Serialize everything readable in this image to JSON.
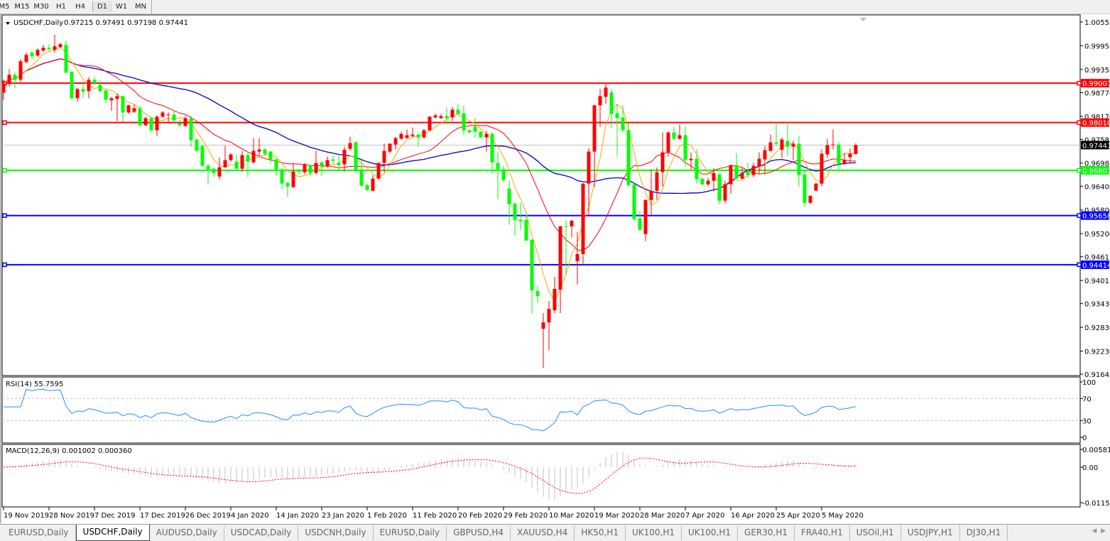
{
  "toolbar": {
    "timeframes": [
      "M5",
      "M15",
      "M30",
      "H1",
      "H4",
      "D1",
      "W1",
      "MN"
    ],
    "active": "D1"
  },
  "header": {
    "symbol": "USDCHF,Daily",
    "ohlc_text": "0.97215 0.97491 0.97198 0.97441"
  },
  "colors": {
    "up_candle": "#ff0000",
    "down_candle": "#00ff00",
    "ma_fast": "#ffa500",
    "ma_mid": "#ff0000",
    "ma_slow": "#0000c8",
    "rsi": "#1e90ff",
    "macd_hist": "#c0c0c0",
    "macd_signal": "#ff0000"
  },
  "price_axis": [
    "1.00555",
    "0.99955",
    "0.99355",
    "0.98770",
    "0.98170",
    "0.97585",
    "0.96985",
    "0.96400",
    "0.95800",
    "0.95200",
    "0.94615",
    "0.94015",
    "0.93430",
    "0.92830",
    "0.92230",
    "0.91645"
  ],
  "levels": [
    {
      "value": "0.99007",
      "color": "#ff0000"
    },
    {
      "value": "0.98010",
      "color": "#ff0000"
    },
    {
      "value": "0.96803",
      "color": "#00ff00"
    },
    {
      "value": "0.95658",
      "color": "#0000ff"
    },
    {
      "value": "0.94414",
      "color": "#0000ff"
    }
  ],
  "current_price": {
    "value": "0.97441",
    "color": "#000000"
  },
  "rsi": {
    "label": "RSI(14) 55.7595",
    "axis": [
      "100",
      "70",
      "30",
      "0"
    ]
  },
  "macd": {
    "label": "MACD(12,26,9) 0.001002 0.000360",
    "axis": [
      "0.005818",
      "0.00",
      "-0.011514"
    ]
  },
  "date_axis": [
    "19 Nov 2019",
    "28 Nov 2019",
    "7 Dec 2019",
    "17 Dec 2019",
    "26 Dec 2019",
    "4 Jan 2020",
    "14 Jan 2020",
    "23 Jan 2020",
    "1 Feb 2020",
    "11 Feb 2020",
    "20 Feb 2020",
    "29 Feb 2020",
    "10 Mar 2020",
    "19 Mar 2020",
    "28 Mar 2020",
    "7 Apr 2020",
    "16 Apr 2020",
    "25 Apr 2020",
    "5 May 2020"
  ],
  "tabs": [
    "EURUSD,Daily",
    "USDCHF,Daily",
    "AUDUSD,Daily",
    "USDCAD,Daily",
    "USDCNH,Daily",
    "EURUSD,Daily",
    "GBPUSD,H4",
    "XAUUSD,H4",
    "HK50,H1",
    "UK100,H1",
    "UK100,H1",
    "GER30,H1",
    "FRA40,H1",
    "USOil,H1",
    "USDJPY,H1",
    "DJ30,H1"
  ],
  "active_tab": "USDCHF,Daily",
  "chart_data": {
    "type": "candlestick",
    "symbol": "USDCHF",
    "timeframe": "Daily",
    "ylim": [
      0.91645,
      1.00555
    ],
    "ohlc_fields": [
      "open",
      "high",
      "low",
      "close"
    ],
    "ohlc": [
      [
        0.9877,
        0.99094,
        0.9859,
        0.99004
      ],
      [
        0.98986,
        0.99364,
        0.98914,
        0.9922
      ],
      [
        0.9922,
        0.99274,
        0.98878,
        0.99094
      ],
      [
        0.99094,
        0.99616,
        0.9904,
        0.99562
      ],
      [
        0.99544,
        0.99778,
        0.99508,
        0.99724
      ],
      [
        0.99778,
        0.99832,
        0.99598,
        0.99688
      ],
      [
        0.99706,
        0.99886,
        0.9967,
        0.9985
      ],
      [
        0.99832,
        0.99976,
        0.99796,
        0.99904
      ],
      [
        0.99904,
        0.99994,
        0.99814,
        0.99868
      ],
      [
        0.9985,
        1.00228,
        0.99778,
        0.9994
      ],
      [
        0.99922,
        1.0003,
        0.99904,
        0.99994
      ],
      [
        0.99976,
        1.00084,
        0.99256,
        0.99274
      ],
      [
        0.99292,
        0.9931,
        0.986,
        0.98626
      ],
      [
        0.98626,
        0.98896,
        0.98536,
        0.9886
      ],
      [
        0.9886,
        0.98986,
        0.98626,
        0.98788
      ],
      [
        0.98806,
        0.99166,
        0.98626,
        0.99094
      ],
      [
        0.99094,
        0.99166,
        0.98968,
        0.99004
      ],
      [
        0.98968,
        0.99094,
        0.9877,
        0.98806
      ],
      [
        0.98824,
        0.98842,
        0.985,
        0.9859
      ],
      [
        0.98572,
        0.98662,
        0.98302,
        0.98626
      ],
      [
        0.98608,
        0.98752,
        0.9805,
        0.9868
      ],
      [
        0.9868,
        0.98698,
        0.98032,
        0.98266
      ],
      [
        0.98266,
        0.98464,
        0.9823,
        0.98446
      ],
      [
        0.98284,
        0.98464,
        0.98248,
        0.98374
      ],
      [
        0.98374,
        0.98428,
        0.97924,
        0.97942
      ],
      [
        0.97942,
        0.98158,
        0.97924,
        0.98122
      ],
      [
        0.98122,
        0.98158,
        0.97762,
        0.97816
      ],
      [
        0.97816,
        0.98194,
        0.97672,
        0.98158
      ],
      [
        0.98158,
        0.98302,
        0.9814,
        0.98266
      ],
      [
        0.98194,
        0.98266,
        0.97996,
        0.98212
      ],
      [
        0.98212,
        0.9832,
        0.98032,
        0.98068
      ],
      [
        0.97996,
        0.98086,
        0.97906,
        0.97942
      ],
      [
        0.97924,
        0.98176,
        0.97906,
        0.98122
      ],
      [
        0.98122,
        0.98176,
        0.97402,
        0.97564
      ],
      [
        0.97582,
        0.976,
        0.97276,
        0.97294
      ],
      [
        0.9742,
        0.97438,
        0.96898,
        0.96916
      ],
      [
        0.96916,
        0.9697,
        0.96448,
        0.96826
      ],
      [
        0.96844,
        0.96862,
        0.96628,
        0.96736
      ],
      [
        0.96646,
        0.97132,
        0.96574,
        0.9688
      ],
      [
        0.9688,
        0.9742,
        0.96862,
        0.9706
      ],
      [
        0.9706,
        0.9724,
        0.97024,
        0.97204
      ],
      [
        0.97024,
        0.97186,
        0.96808,
        0.96844
      ],
      [
        0.96844,
        0.97294,
        0.96754,
        0.97186
      ],
      [
        0.97186,
        0.97276,
        0.96628,
        0.97024
      ],
      [
        0.97006,
        0.97618,
        0.9697,
        0.97294
      ],
      [
        0.97276,
        0.97618,
        0.9715,
        0.9733
      ],
      [
        0.9733,
        0.97366,
        0.9715,
        0.97222
      ],
      [
        0.97276,
        0.97294,
        0.9697,
        0.97078
      ],
      [
        0.97078,
        0.97114,
        0.96664,
        0.96826
      ],
      [
        0.96826,
        0.96844,
        0.96322,
        0.96466
      ],
      [
        0.96484,
        0.96502,
        0.96124,
        0.96394
      ],
      [
        0.96376,
        0.9697,
        0.96358,
        0.96772
      ],
      [
        0.96772,
        0.96826,
        0.967,
        0.96754
      ],
      [
        0.96754,
        0.96988,
        0.967,
        0.96952
      ],
      [
        0.96934,
        0.9697,
        0.96646,
        0.96736
      ],
      [
        0.96736,
        0.97294,
        0.967,
        0.96988
      ],
      [
        0.97006,
        0.97024,
        0.96664,
        0.96916
      ],
      [
        0.96898,
        0.9715,
        0.96862,
        0.9706
      ],
      [
        0.97078,
        0.97168,
        0.96952,
        0.97042
      ],
      [
        0.96988,
        0.97168,
        0.96826,
        0.96934
      ],
      [
        0.96952,
        0.97402,
        0.96772,
        0.97324
      ],
      [
        0.97348,
        0.97654,
        0.97294,
        0.97492
      ],
      [
        0.9751,
        0.97528,
        0.96772,
        0.9679
      ],
      [
        0.96826,
        0.97114,
        0.96394,
        0.96412
      ],
      [
        0.9643,
        0.96466,
        0.96268,
        0.96304
      ],
      [
        0.96286,
        0.96682,
        0.96268,
        0.96592
      ],
      [
        0.96592,
        0.97006,
        0.96574,
        0.96988
      ],
      [
        0.96988,
        0.97474,
        0.96754,
        0.97294
      ],
      [
        0.97276,
        0.97492,
        0.9724,
        0.97474
      ],
      [
        0.97456,
        0.97654,
        0.9733,
        0.97618
      ],
      [
        0.976,
        0.9778,
        0.97582,
        0.97726
      ],
      [
        0.97618,
        0.97834,
        0.976,
        0.9769
      ],
      [
        0.97672,
        0.97888,
        0.97636,
        0.97708
      ],
      [
        0.97708,
        0.97726,
        0.97402,
        0.97636
      ],
      [
        0.97636,
        0.97852,
        0.976,
        0.97816
      ],
      [
        0.97816,
        0.98176,
        0.9778,
        0.98158
      ],
      [
        0.9814,
        0.9823,
        0.98122,
        0.98194
      ],
      [
        0.98122,
        0.9823,
        0.98104,
        0.98176
      ],
      [
        0.98176,
        0.98392,
        0.9796,
        0.98122
      ],
      [
        0.9814,
        0.9841,
        0.9805,
        0.98338
      ],
      [
        0.98338,
        0.98482,
        0.98212,
        0.9823
      ],
      [
        0.98248,
        0.98446,
        0.9769,
        0.97816
      ],
      [
        0.97816,
        0.97852,
        0.97744,
        0.97762
      ],
      [
        0.97906,
        0.98122,
        0.97618,
        0.9778
      ],
      [
        0.9778,
        0.97798,
        0.97618,
        0.97636
      ],
      [
        0.97636,
        0.97798,
        0.97276,
        0.97726
      ],
      [
        0.97726,
        0.97762,
        0.96718,
        0.97006
      ],
      [
        0.96988,
        0.97276,
        0.9607,
        0.96826
      ],
      [
        0.96826,
        0.96916,
        0.96502,
        0.96556
      ],
      [
        0.9634,
        0.96538,
        0.95422,
        0.95944
      ],
      [
        0.95962,
        0.9598,
        0.95152,
        0.95548
      ],
      [
        0.95548,
        0.9598,
        0.95296,
        0.95512
      ],
      [
        0.95548,
        0.95746,
        0.95008,
        0.95026
      ],
      [
        0.95044,
        0.95062,
        0.93172,
        0.93766
      ],
      [
        0.93748,
        0.93874,
        0.9346,
        0.93622
      ],
      [
        0.92794,
        0.9319,
        0.91804,
        0.92956
      ],
      [
        0.92956,
        0.93496,
        0.92254,
        0.93298
      ],
      [
        0.93262,
        0.94108,
        0.9319,
        0.93802
      ],
      [
        0.93784,
        0.95404,
        0.9319,
        0.95386
      ],
      [
        0.95386,
        0.95548,
        0.9418,
        0.95368
      ],
      [
        0.95386,
        0.95548,
        0.95098,
        0.9553
      ],
      [
        0.94504,
        0.95242,
        0.9391,
        0.94684
      ],
      [
        0.94684,
        0.96484,
        0.94432,
        0.96466
      ],
      [
        0.96466,
        0.97366,
        0.95674,
        0.97276
      ],
      [
        0.97276,
        0.98464,
        0.96376,
        0.98446
      ],
      [
        0.98446,
        0.9886,
        0.97906,
        0.9868
      ],
      [
        0.98662,
        0.99004,
        0.98482,
        0.98896
      ],
      [
        0.9877,
        0.9886,
        0.9787,
        0.9823
      ],
      [
        0.98248,
        0.98464,
        0.97168,
        0.98122
      ],
      [
        0.9814,
        0.98446,
        0.9778,
        0.97816
      ],
      [
        0.97816,
        0.97996,
        0.96394,
        0.9643
      ],
      [
        0.96448,
        0.96466,
        0.9553,
        0.95566
      ],
      [
        0.95584,
        0.95782,
        0.95278,
        0.95296
      ],
      [
        0.95188,
        0.9607,
        0.95008,
        0.96052
      ],
      [
        0.96052,
        0.96826,
        0.95674,
        0.96286
      ],
      [
        0.96286,
        0.9688,
        0.96052,
        0.96754
      ],
      [
        0.96754,
        0.97762,
        0.96394,
        0.97258
      ],
      [
        0.97258,
        0.9778,
        0.9715,
        0.97762
      ],
      [
        0.97762,
        0.97906,
        0.97564,
        0.976
      ],
      [
        0.976,
        0.9796,
        0.97582,
        0.9769
      ],
      [
        0.9769,
        0.97906,
        0.96898,
        0.9706
      ],
      [
        0.9706,
        0.97258,
        0.96826,
        0.97096
      ],
      [
        0.97096,
        0.9733,
        0.96466,
        0.96574
      ],
      [
        0.96592,
        0.9661,
        0.9643,
        0.96448
      ],
      [
        0.96448,
        0.9661,
        0.96394,
        0.96538
      ],
      [
        0.96538,
        0.96862,
        0.96268,
        0.96736
      ],
      [
        0.967,
        0.96736,
        0.95944,
        0.96034
      ],
      [
        0.96034,
        0.96538,
        0.95962,
        0.96448
      ],
      [
        0.96448,
        0.96952,
        0.96214,
        0.96934
      ],
      [
        0.96934,
        0.9724,
        0.96574,
        0.96592
      ],
      [
        0.96592,
        0.96862,
        0.96574,
        0.96736
      ],
      [
        0.96772,
        0.96988,
        0.9661,
        0.96682
      ],
      [
        0.96682,
        0.97006,
        0.96628,
        0.96916
      ],
      [
        0.96898,
        0.97258,
        0.96718,
        0.97096
      ],
      [
        0.97078,
        0.9742,
        0.967,
        0.97312
      ],
      [
        0.97294,
        0.97708,
        0.97276,
        0.9751
      ],
      [
        0.9751,
        0.98014,
        0.9742,
        0.97474
      ],
      [
        0.97324,
        0.97636,
        0.97114,
        0.97582
      ],
      [
        0.97546,
        0.98014,
        0.97168,
        0.97402
      ],
      [
        0.97402,
        0.97546,
        0.9706,
        0.97474
      ],
      [
        0.97474,
        0.97672,
        0.96394,
        0.96682
      ],
      [
        0.967,
        0.96826,
        0.95872,
        0.9598
      ],
      [
        0.9598,
        0.9616,
        0.95962,
        0.9616
      ],
      [
        0.96286,
        0.96484,
        0.96286,
        0.96466
      ],
      [
        0.96466,
        0.9733,
        0.96394,
        0.97222
      ],
      [
        0.97204,
        0.976,
        0.97114,
        0.97438
      ],
      [
        0.97438,
        0.97834,
        0.9733,
        0.97456
      ],
      [
        0.97456,
        0.97528,
        0.96826,
        0.9697
      ],
      [
        0.9697,
        0.9724,
        0.96952,
        0.9706
      ],
      [
        0.97132,
        0.97348,
        0.96988,
        0.97222
      ],
      [
        0.97215,
        0.97491,
        0.97198,
        0.97441
      ]
    ],
    "indicators": [
      {
        "name": "RSI",
        "params": [
          14
        ],
        "last": 55.7595,
        "levels": [
          70,
          30
        ],
        "ylim": [
          0,
          100
        ]
      },
      {
        "name": "MACD",
        "params": [
          12,
          26,
          9
        ],
        "last": [
          0.001002,
          0.00036
        ],
        "ylim": [
          -0.011514,
          0.005818
        ]
      }
    ],
    "grid": false
  }
}
